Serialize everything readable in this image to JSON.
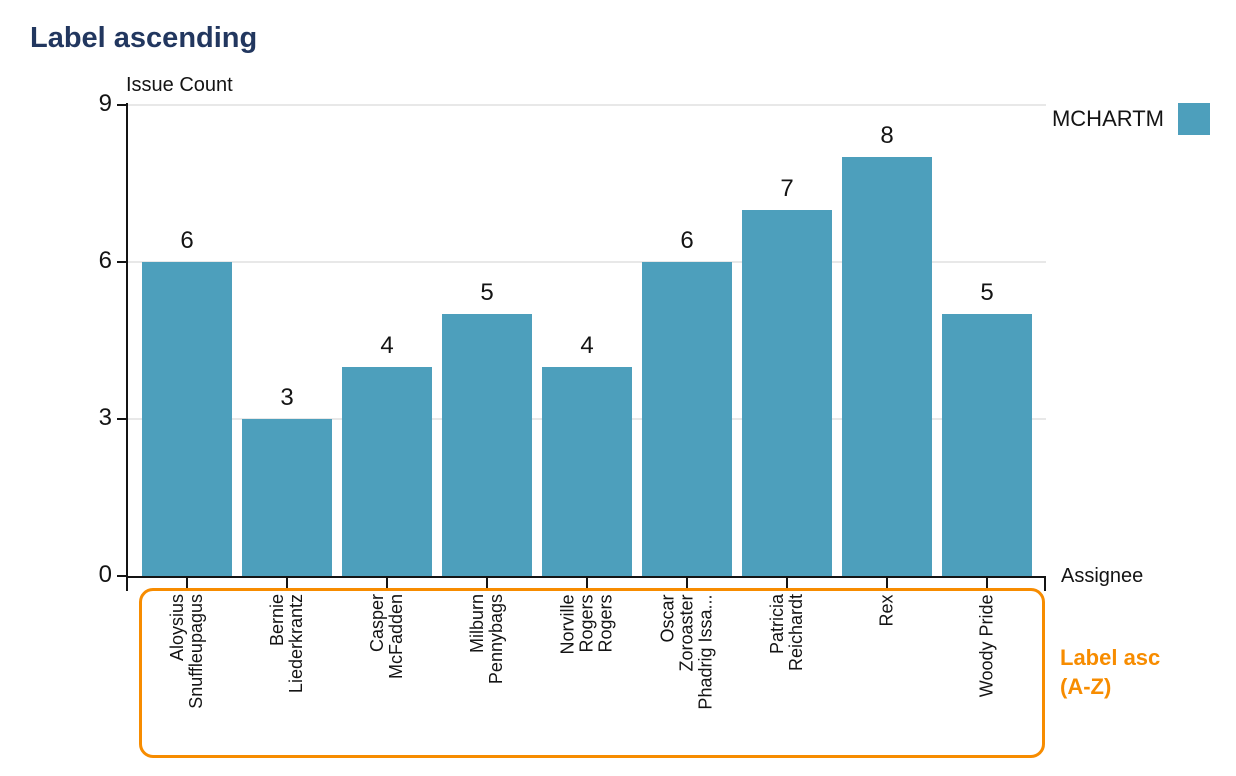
{
  "header": {
    "title": "Label ascending"
  },
  "legend": {
    "series_label": "MCHARTM",
    "swatch_color": "#4d9fbc"
  },
  "annotation": {
    "line1": "Label asc",
    "line2": "(A-Z)"
  },
  "chart_data": {
    "type": "bar",
    "title": "Label ascending",
    "xlabel": "Assignee",
    "ylabel": "Issue Count",
    "categories": [
      "Aloysius Snuffleupagus",
      "Bernie Liederkrantz",
      "Casper McFadden",
      "Milburn Pennybags",
      "Norville Rogers Rogers",
      "Oscar Zoroaster Phadrig Issa...",
      "Patricia Reichardt",
      "Rex",
      "Woody Pride"
    ],
    "category_label_lines": [
      [
        "Aloysius",
        "Snuffleupagus"
      ],
      [
        "Bernie",
        "Liederkrantz"
      ],
      [
        "Casper",
        "McFadden"
      ],
      [
        "Milburn",
        "Pennybags"
      ],
      [
        "Norville",
        "Rogers",
        "Rogers"
      ],
      [
        "Oscar",
        "Zoroaster",
        "Phadrig Issa..."
      ],
      [
        "Patricia",
        "Reichardt"
      ],
      [
        "Rex"
      ],
      [
        "Woody Pride"
      ]
    ],
    "series": [
      {
        "name": "MCHARTM",
        "values": [
          6,
          3,
          4,
          5,
          4,
          6,
          7,
          8,
          5
        ]
      }
    ],
    "data_labels": [
      6,
      3,
      4,
      5,
      4,
      6,
      7,
      8,
      5
    ],
    "ylim": [
      0,
      9
    ],
    "yticks": [
      0,
      3,
      6,
      9
    ],
    "grid": true,
    "bar_color": "#4d9fbc",
    "legend_position": "top-right",
    "sort_annotation": "Label asc (A-Z)"
  }
}
